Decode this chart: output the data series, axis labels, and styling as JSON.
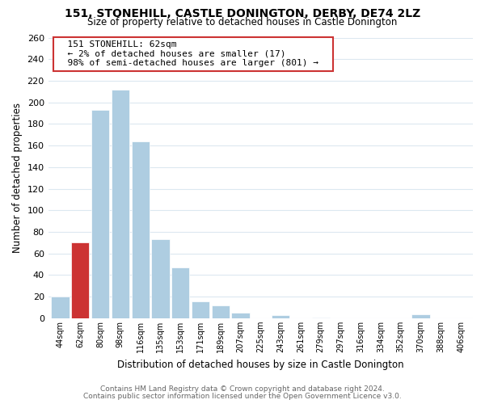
{
  "title": "151, STONEHILL, CASTLE DONINGTON, DERBY, DE74 2LZ",
  "subtitle": "Size of property relative to detached houses in Castle Donington",
  "xlabel": "Distribution of detached houses by size in Castle Donington",
  "ylabel": "Number of detached properties",
  "bin_labels": [
    "44sqm",
    "62sqm",
    "80sqm",
    "98sqm",
    "116sqm",
    "135sqm",
    "153sqm",
    "171sqm",
    "189sqm",
    "207sqm",
    "225sqm",
    "243sqm",
    "261sqm",
    "279sqm",
    "297sqm",
    "316sqm",
    "334sqm",
    "352sqm",
    "370sqm",
    "388sqm",
    "406sqm"
  ],
  "bar_values": [
    20,
    70,
    193,
    212,
    164,
    73,
    47,
    16,
    12,
    5,
    0,
    3,
    0,
    1,
    0,
    0,
    0,
    0,
    4,
    0,
    0
  ],
  "highlight_bar_index": 1,
  "highlight_color": "#cc3333",
  "normal_color": "#aecde1",
  "annotation_title": "151 STONEHILL: 62sqm",
  "annotation_line1": "← 2% of detached houses are smaller (17)",
  "annotation_line2": "98% of semi-detached houses are larger (801) →",
  "ylim": [
    0,
    260
  ],
  "yticks": [
    0,
    20,
    40,
    60,
    80,
    100,
    120,
    140,
    160,
    180,
    200,
    220,
    240,
    260
  ],
  "footnote1": "Contains HM Land Registry data © Crown copyright and database right 2024.",
  "footnote2": "Contains public sector information licensed under the Open Government Licence v3.0.",
  "background_color": "#ffffff",
  "grid_color": "#dce8f0"
}
